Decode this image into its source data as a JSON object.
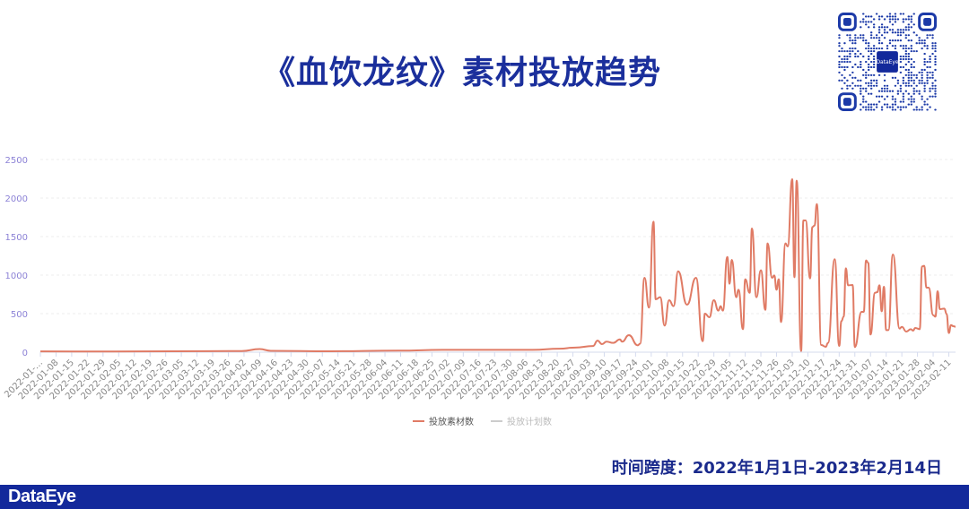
{
  "title": "《血饮龙纹》素材投放趋势",
  "footer": {
    "time_span": "时间跨度：2022年1月1日-2023年2月14日"
  },
  "brand": {
    "logo_text": "DataEye",
    "qr_logo_text": "DataEye",
    "color": "#13299b"
  },
  "chart_data": {
    "type": "line",
    "title": "",
    "xlabel": "",
    "ylabel": "",
    "x_range": [
      "2022-01-01",
      "2023-02-14"
    ],
    "ylim": [
      0,
      2500
    ],
    "y_ticks": [
      "0",
      "500",
      "1000",
      "1500",
      "2000",
      "2500"
    ],
    "y_tick_values": [
      0,
      500,
      1000,
      1500,
      2000,
      2500
    ],
    "grid": true,
    "legend_position": "bottom",
    "x_tick_labels": [
      "2022-01-…",
      "2022-01-08",
      "2022-01-15",
      "2022-01-22",
      "2022-01-29",
      "2022-02-05",
      "2022-02-12",
      "2022-02-19",
      "2022-02-26",
      "2022-03-05",
      "2022-03-12",
      "2022-03-19",
      "2022-03-26",
      "2022-04-02",
      "2022-04-09",
      "2022-04-16",
      "2022-04-23",
      "2022-04-30",
      "2022-05-07",
      "2022-05-14",
      "2022-05-21",
      "2022-05-28",
      "2022-06-04",
      "2022-06-11",
      "2022-06-18",
      "2022-06-25",
      "2022-07-02",
      "2022-07-09",
      "2022-07-16",
      "2022-07-23",
      "2022-07-30",
      "2022-08-06",
      "2022-08-13",
      "2022-08-20",
      "2022-08-27",
      "2022-09-03",
      "2022-09-10",
      "2022-09-17",
      "2022-09-24",
      "2022-10-01",
      "2022-10-08",
      "2022-10-15",
      "2022-10-22",
      "2022-10-29",
      "2022-11-05",
      "2022-11-12",
      "2022-11-19",
      "2022-11-26",
      "2022-12-03",
      "2022-12-10",
      "2022-12-17",
      "2022-12-24",
      "2022-12-31",
      "2023-01-07",
      "2023-01-14",
      "2023-01-21",
      "2023-01-28",
      "2023-02-04",
      "2023-02-11"
    ],
    "series": [
      {
        "name": "投放素材数",
        "color": "#e07b65",
        "active": true,
        "points": [
          [
            "2022-01-01",
            10
          ],
          [
            "2022-01-31",
            8
          ],
          [
            "2022-03-02",
            12
          ],
          [
            "2022-04-01",
            15
          ],
          [
            "2022-04-09",
            40
          ],
          [
            "2022-04-14",
            18
          ],
          [
            "2022-05-11",
            12
          ],
          [
            "2022-06-10",
            20
          ],
          [
            "2022-06-30",
            30
          ],
          [
            "2022-07-20",
            30
          ],
          [
            "2022-08-09",
            30
          ],
          [
            "2022-08-21",
            45
          ],
          [
            "2022-08-28",
            60
          ],
          [
            "2022-09-05",
            80
          ],
          [
            "2022-09-07",
            150
          ],
          [
            "2022-09-09",
            105
          ],
          [
            "2022-09-11",
            136
          ],
          [
            "2022-09-14",
            120
          ],
          [
            "2022-09-17",
            166
          ],
          [
            "2022-09-18",
            136
          ],
          [
            "2022-09-21",
            221
          ],
          [
            "2022-09-25",
            89
          ],
          [
            "2022-09-26",
            110
          ],
          [
            "2022-09-28",
            965
          ],
          [
            "2022-09-30",
            578
          ],
          [
            "2022-10-02",
            1694
          ],
          [
            "2022-10-03",
            686
          ],
          [
            "2022-10-05",
            713
          ],
          [
            "2022-10-07",
            345
          ],
          [
            "2022-10-09",
            674
          ],
          [
            "2022-10-11",
            597
          ],
          [
            "2022-10-13",
            1050
          ],
          [
            "2022-10-17",
            616
          ],
          [
            "2022-10-21",
            965
          ],
          [
            "2022-10-24",
            143
          ],
          [
            "2022-10-25",
            500
          ],
          [
            "2022-10-27",
            454
          ],
          [
            "2022-10-29",
            674
          ],
          [
            "2022-10-31",
            539
          ],
          [
            "2022-11-01",
            597
          ],
          [
            "2022-11-02",
            539
          ],
          [
            "2022-11-04",
            1236
          ],
          [
            "2022-11-05",
            888
          ],
          [
            "2022-11-06",
            1198
          ],
          [
            "2022-11-08",
            713
          ],
          [
            "2022-11-09",
            810
          ],
          [
            "2022-11-11",
            298
          ],
          [
            "2022-11-12",
            946
          ],
          [
            "2022-11-14",
            771
          ],
          [
            "2022-11-15",
            1605
          ],
          [
            "2022-11-17",
            713
          ],
          [
            "2022-11-19",
            1062
          ],
          [
            "2022-11-21",
            550
          ],
          [
            "2022-11-22",
            1411
          ],
          [
            "2022-11-24",
            965
          ],
          [
            "2022-11-25",
            995
          ],
          [
            "2022-11-26",
            810
          ],
          [
            "2022-11-27",
            946
          ],
          [
            "2022-11-28",
            391
          ],
          [
            "2022-11-30",
            1411
          ],
          [
            "2022-12-01",
            1372
          ],
          [
            "2022-12-03",
            2244
          ],
          [
            "2022-12-04",
            973
          ],
          [
            "2022-12-05",
            2225
          ],
          [
            "2022-12-07",
            15
          ],
          [
            "2022-12-08",
            1709
          ],
          [
            "2022-12-09",
            1709
          ],
          [
            "2022-12-11",
            957
          ],
          [
            "2022-12-12",
            1624
          ],
          [
            "2022-12-13",
            1643
          ],
          [
            "2022-12-14",
            1922
          ],
          [
            "2022-12-16",
            93
          ],
          [
            "2022-12-18",
            70
          ],
          [
            "2022-12-19",
            120
          ],
          [
            "2022-12-22",
            1206
          ],
          [
            "2022-12-24",
            81
          ],
          [
            "2022-12-25",
            403
          ],
          [
            "2022-12-26",
            461
          ],
          [
            "2022-12-27",
            1089
          ],
          [
            "2022-12-28",
            868
          ],
          [
            "2022-12-30",
            872
          ],
          [
            "2022-12-31",
            66
          ],
          [
            "2023-01-03",
            523
          ],
          [
            "2023-01-04",
            523
          ],
          [
            "2023-01-05",
            1190
          ],
          [
            "2023-01-06",
            1159
          ],
          [
            "2023-01-07",
            229
          ],
          [
            "2023-01-09",
            771
          ],
          [
            "2023-01-10",
            779
          ],
          [
            "2023-01-11",
            868
          ],
          [
            "2023-01-12",
            531
          ],
          [
            "2023-01-13",
            849
          ],
          [
            "2023-01-14",
            287
          ],
          [
            "2023-01-15",
            287
          ],
          [
            "2023-01-17",
            1267
          ],
          [
            "2023-01-20",
            306
          ],
          [
            "2023-01-21",
            329
          ],
          [
            "2023-01-23",
            267
          ],
          [
            "2023-01-25",
            298
          ],
          [
            "2023-01-26",
            280
          ],
          [
            "2023-01-27",
            314
          ],
          [
            "2023-01-29",
            298
          ],
          [
            "2023-01-30",
            1112
          ],
          [
            "2023-01-31",
            1120
          ],
          [
            "2023-02-01",
            837
          ],
          [
            "2023-02-02",
            837
          ],
          [
            "2023-02-04",
            481
          ],
          [
            "2023-02-05",
            461
          ],
          [
            "2023-02-06",
            790
          ],
          [
            "2023-02-07",
            558
          ],
          [
            "2023-02-09",
            566
          ],
          [
            "2023-02-10",
            496
          ],
          [
            "2023-02-11",
            248
          ],
          [
            "2023-02-12",
            352
          ],
          [
            "2023-02-13",
            337
          ],
          [
            "2023-02-14",
            330
          ]
        ]
      },
      {
        "name": "投放计划数",
        "color": "#cccccc",
        "active": false,
        "points": []
      }
    ]
  }
}
